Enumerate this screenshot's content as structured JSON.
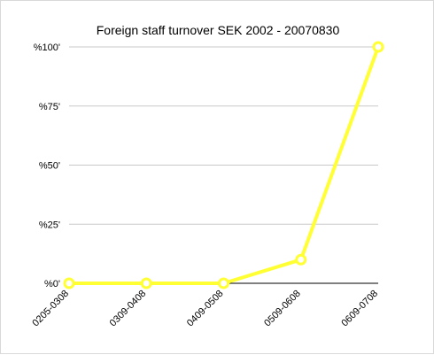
{
  "chart_data": {
    "type": "line",
    "title": "Foreign staff turnover SEK 2002 - 20070830",
    "xlabel": "",
    "ylabel": "",
    "categories": [
      "0205-0308",
      "0309-0408",
      "0409-0508",
      "0509-0608",
      "0609-0708"
    ],
    "series": [
      {
        "values": [
          0,
          0,
          0,
          10,
          100
        ],
        "color": "#ffff33"
      }
    ],
    "y_ticks": [
      {
        "value": 0,
        "label": "%0'"
      },
      {
        "value": 25,
        "label": "%25'"
      },
      {
        "value": 50,
        "label": "%50'"
      },
      {
        "value": 75,
        "label": "%75'"
      },
      {
        "value": 100,
        "label": "%100'"
      }
    ],
    "ylim": [
      0,
      100
    ],
    "grid": true,
    "legend": "none",
    "gridline_color": "#c8c8c8",
    "axis_color": "#000000"
  }
}
